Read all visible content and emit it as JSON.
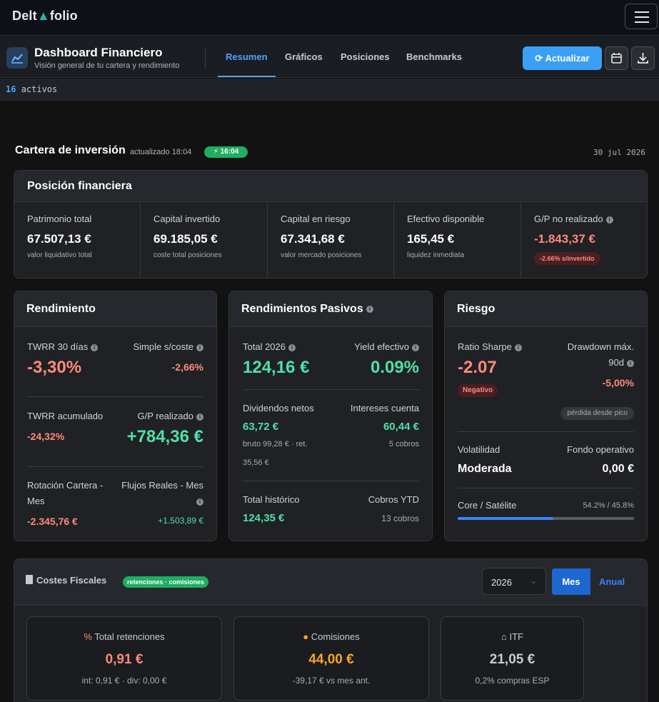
{
  "nav": {
    "brand_pre": "Delt",
    "brand_tri": "A",
    "brand_post": "folio"
  },
  "header": {
    "title": "Dashboard Financiero",
    "subtitle": "Visión general de tu cartera y rendimiento",
    "tabs": [
      {
        "label": "Resumen",
        "active": true
      },
      {
        "label": "Gráficos"
      },
      {
        "label": "Posiciones"
      },
      {
        "label": "Benchmarks"
      }
    ],
    "refresh_label": "Actualizar"
  },
  "assets": {
    "count": "16",
    "label": "activos"
  },
  "section": {
    "title": "Cartera de inversión",
    "updated": "actualizado 18:04",
    "time_pill": "16:04",
    "date": "30 jul 2026"
  },
  "position": {
    "title": "Posición financiera",
    "cells": [
      {
        "label": "Patrimonio total",
        "value": "67.507,13 €",
        "sub": "valor liquidativo total"
      },
      {
        "label": "Capital invertido",
        "value": "69.185,05 €",
        "sub": "coste total posiciones"
      },
      {
        "label": "Capital en riesgo",
        "value": "67.341,68 €",
        "sub": "valor mercado posiciones"
      },
      {
        "label": "Efectivo disponible",
        "value": "165,45 €",
        "sub": "liquidez inmediata"
      },
      {
        "label": "G/P no realizado",
        "value": "-1.843,37 €",
        "sub": "-2.66% s/invertido"
      }
    ]
  },
  "rendimiento": {
    "title": "Rendimiento",
    "twrr30_label": "TWRR 30 días",
    "twrr30_value": "-3,30%",
    "simple_label": "Simple s/coste",
    "simple_value": "-2,66%",
    "twrr_acc_label": "TWRR acumulado",
    "twrr_acc_value": "-24,32%",
    "gp_real_label": "G/P realizado",
    "gp_real_value": "+784,36 €",
    "rot_label_1": "Rotación Cartera -",
    "rot_label_2": "Mes",
    "rot_value": "-2.345,76 €",
    "flujos_label": "Flujos Reales - Mes",
    "flujos_value": "+1.503,89 €"
  },
  "pasivos": {
    "title": "Rendimientos Pasivos",
    "total_label": "Total 2026",
    "total_value": "124,16 €",
    "yield_label": "Yield efectivo",
    "yield_value": "0.09%",
    "div_label": "Dividendos netos",
    "div_value": "63,72 €",
    "div_sub": "bruto 99,28 € · ret.",
    "div_ret": "35,56 €",
    "int_label": "Intereses cuenta",
    "int_value": "60,44 €",
    "int_sub": "5 cobros",
    "hist_label": "Total histórico",
    "hist_value": "124,35 €",
    "ytd_label": "Cobros YTD",
    "ytd_value": "13 cobros"
  },
  "riesgo": {
    "title": "Riesgo",
    "sharpe_label": "Ratio Sharpe",
    "sharpe_value": "-2.07",
    "sharpe_badge": "Negativo",
    "dd_label_1": "Drawdown máx.",
    "dd_label_2": "90d",
    "dd_value": "-5,00%",
    "dd_badge": "pérdida desde pico",
    "vol_label": "Volatilidad",
    "vol_value": "Moderada",
    "fondo_label": "Fondo operativo",
    "fondo_value": "0,00 €",
    "core_label": "Core / Satélite",
    "core_value": "54.2% / 45.8%",
    "core_fraction": 0.542
  },
  "fiscal": {
    "title": "Costes Fiscales",
    "pill": "retenciones · comisiones",
    "year": "2026",
    "btn_mes": "Mes",
    "btn_anual": "Anual",
    "boxes": [
      {
        "label": "Total retenciones",
        "value": "0,91 €",
        "sub": "int: 0,91 € · div: 0,00 €",
        "color": "#ff8a7a"
      },
      {
        "label": "Comisiones",
        "value": "44,00 €",
        "sub": "-39,17 € vs mes ant.",
        "color": "#f5a623"
      },
      {
        "label": "ITF",
        "value": "21,05 €",
        "sub": "0,2% compras ESP",
        "color": "#c8cbd0"
      }
    ]
  }
}
